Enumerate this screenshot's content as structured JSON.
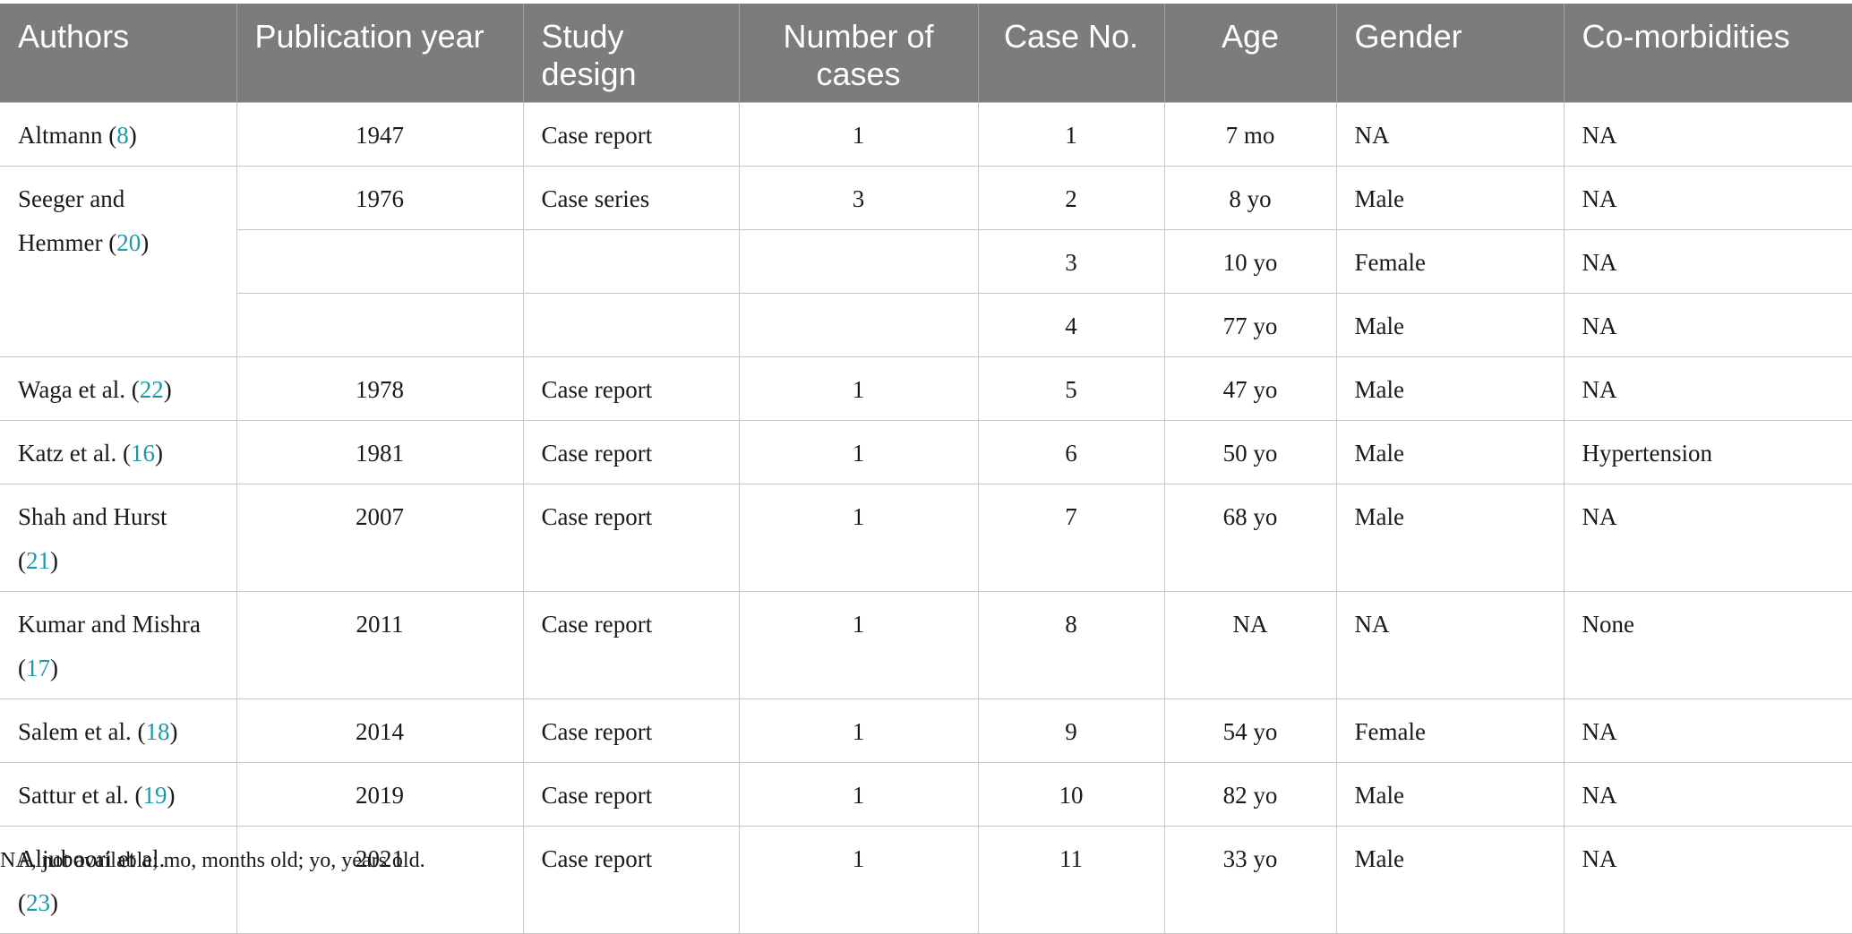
{
  "headers": {
    "authors": "Authors",
    "year": "Publication year",
    "design_1": "Study",
    "design_2": "design",
    "cases_1": "Number of",
    "cases_2": "cases",
    "case_no": "Case No.",
    "age": "Age",
    "gender": "Gender",
    "comorb": "Co-morbidities"
  },
  "rows": {
    "r1": {
      "author": "Altmann (",
      "ref": "8",
      "close": ")",
      "year": "1947",
      "design": "Case report",
      "n": "1",
      "case": "1",
      "age": "7 mo",
      "gender": "NA",
      "comorb": "NA"
    },
    "r2": {
      "author_1": "Seeger and",
      "author_2": "Hemmer (",
      "ref": "20",
      "close": ")",
      "year": "1976",
      "design": "Case series",
      "n": "3",
      "case": "2",
      "age": "8 yo",
      "gender": "Male",
      "comorb": "NA"
    },
    "r3": {
      "case": "3",
      "age": "10 yo",
      "gender": "Female",
      "comorb": "NA"
    },
    "r4": {
      "case": "4",
      "age": "77 yo",
      "gender": "Male",
      "comorb": "NA"
    },
    "r5": {
      "author": "Waga et al. (",
      "ref": "22",
      "close": ")",
      "year": "1978",
      "design": "Case report",
      "n": "1",
      "case": "5",
      "age": "47 yo",
      "gender": "Male",
      "comorb": "NA"
    },
    "r6": {
      "author": "Katz et al. (",
      "ref": "16",
      "close": ")",
      "year": "1981",
      "design": "Case report",
      "n": "1",
      "case": "6",
      "age": "50 yo",
      "gender": "Male",
      "comorb": "Hypertension"
    },
    "r7": {
      "author_1": "Shah and Hurst",
      "open": "(",
      "ref": "21",
      "close": ")",
      "year": "2007",
      "design": "Case report",
      "n": "1",
      "case": "7",
      "age": "68 yo",
      "gender": "Male",
      "comorb": "NA"
    },
    "r8": {
      "author_1": "Kumar and Mishra",
      "open": "(",
      "ref": "17",
      "close": ")",
      "year": "2011",
      "design": "Case report",
      "n": "1",
      "case": "8",
      "age": "NA",
      "gender": "NA",
      "comorb": "None"
    },
    "r9": {
      "author": "Salem et al. (",
      "ref": "18",
      "close": ")",
      "year": "2014",
      "design": "Case report",
      "n": "1",
      "case": "9",
      "age": "54 yo",
      "gender": "Female",
      "comorb": "NA"
    },
    "r10": {
      "author": "Sattur et al. (",
      "ref": "19",
      "close": ")",
      "year": "2019",
      "design": "Case report",
      "n": "1",
      "case": "10",
      "age": "82 yo",
      "gender": "Male",
      "comorb": "NA"
    },
    "r11": {
      "author_1": "Aljuboori et al.",
      "open": "(",
      "ref": "23",
      "close": ")",
      "year": "2021",
      "design": "Case report",
      "n": "1",
      "case": "11",
      "age": "33 yo",
      "gender": "Male",
      "comorb": "NA"
    }
  },
  "footnote": "NA, not available; mo, months old; yo, years old.",
  "colors": {
    "header_bg": "#7b7d7c",
    "header_text": "#ffffff",
    "ref_link": "#1a9aa9",
    "grid": "#c7c7c7"
  }
}
